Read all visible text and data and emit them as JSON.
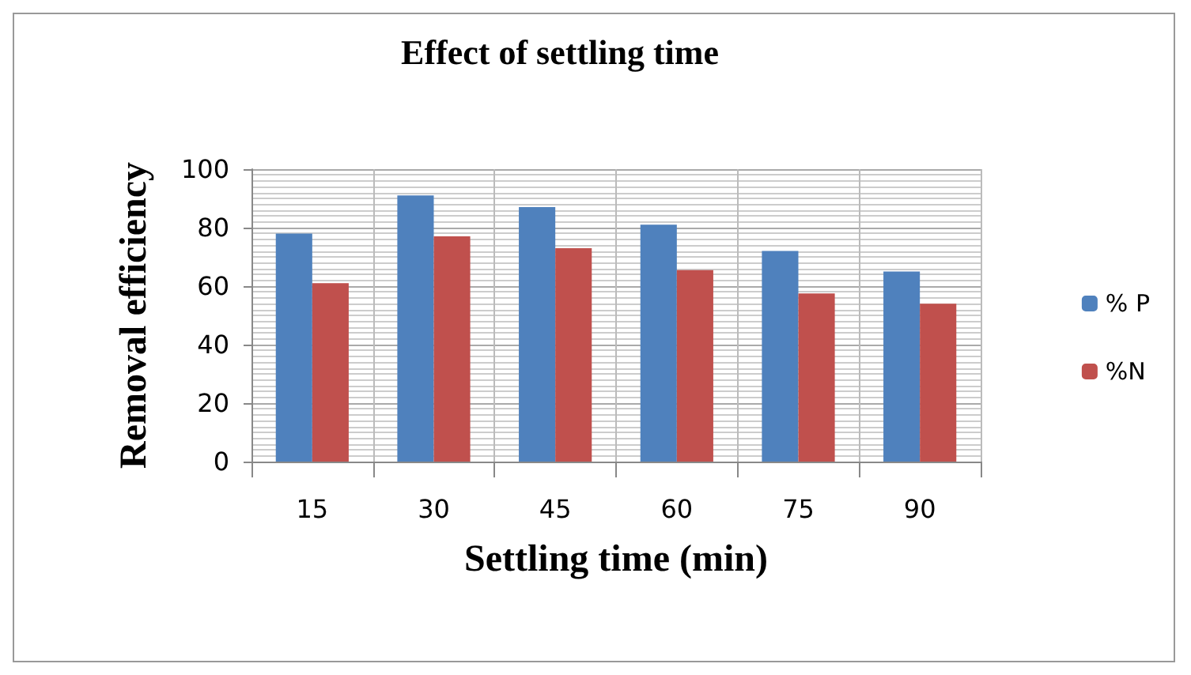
{
  "chart_data": {
    "type": "bar",
    "title": "Effect of settling time",
    "xlabel": "Settling time (min)",
    "ylabel": "Removal efficiency",
    "categories": [
      "15",
      "30",
      "45",
      "60",
      "75",
      "90"
    ],
    "series": [
      {
        "name": "% P",
        "color": "#4f81bd",
        "values": [
          78,
          91,
          87,
          81,
          72,
          65
        ]
      },
      {
        "name": "%N",
        "color": "#c0504d",
        "values": [
          61,
          77,
          73,
          65.5,
          57.5,
          54
        ]
      }
    ],
    "ylim": [
      0,
      100
    ],
    "yticks": [
      0,
      20,
      40,
      60,
      80,
      100
    ],
    "grid": true,
    "legend": "right"
  }
}
